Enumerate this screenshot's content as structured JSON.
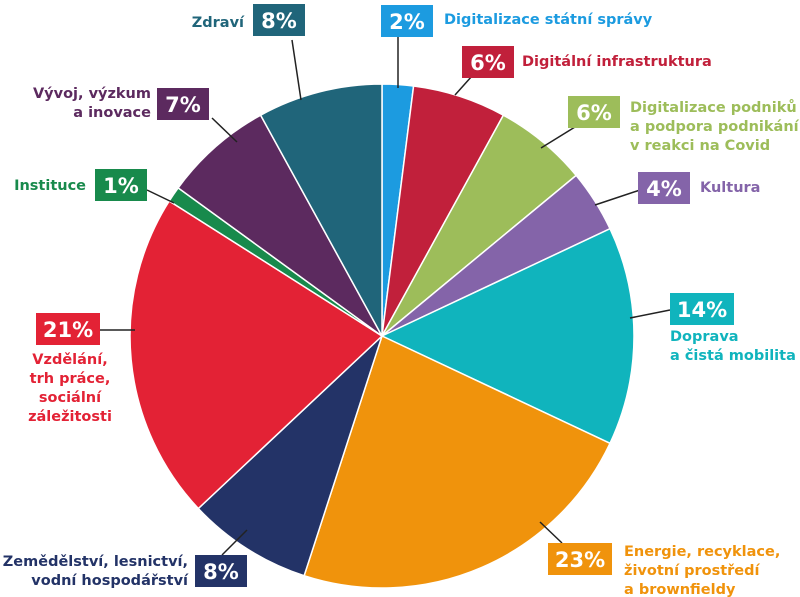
{
  "chart_data": {
    "type": "pie",
    "title": "",
    "unit": "%",
    "slices": [
      {
        "name": "Digitalizace státní správy",
        "name_lines": [
          "Digitalizace státní správy"
        ],
        "value": 2,
        "value_label": "2%",
        "color": "#1c9be0"
      },
      {
        "name": "Digitální infrastruktura",
        "name_lines": [
          "Digitální infrastruktura"
        ],
        "value": 6,
        "value_label": "6%",
        "color": "#c1203b"
      },
      {
        "name": "Digitalizace podniků a podpora podnikání v reakci na Covid",
        "name_lines": [
          "Digitalizace podniků",
          "a podpora podnikání",
          "v reakci na Covid"
        ],
        "value": 6,
        "value_label": "6%",
        "color": "#9dbd5a"
      },
      {
        "name": "Kultura",
        "name_lines": [
          "Kultura"
        ],
        "value": 4,
        "value_label": "4%",
        "color": "#8464a9"
      },
      {
        "name": "Doprava a čistá mobilita",
        "name_lines": [
          "Doprava",
          "a čistá mobilita"
        ],
        "value": 14,
        "value_label": "14%",
        "color": "#10b4bd"
      },
      {
        "name": "Energie, recyklace, životní prostředí a brownfieldy",
        "name_lines": [
          "Energie, recyklace,",
          "životní prostředí",
          "a brownfieldy"
        ],
        "value": 23,
        "value_label": "23%",
        "color": "#f0930c"
      },
      {
        "name": "Zemědělství, lesnictví, vodní hospodářství",
        "name_lines": [
          "Zemědělství, lesnictví,",
          "vodní hospodářství"
        ],
        "value": 8,
        "value_label": "8%",
        "color": "#233367"
      },
      {
        "name": "Vzdělání, trh práce, sociální záležitosti",
        "name_lines": [
          "Vzdělání,",
          "trh práce,",
          "sociální",
          "záležitosti"
        ],
        "value": 21,
        "value_label": "21%",
        "color": "#e32235"
      },
      {
        "name": "Instituce",
        "name_lines": [
          "Instituce"
        ],
        "value": 1,
        "value_label": "1%",
        "color": "#188a4c"
      },
      {
        "name": "Vývoj, výzkum a inovace",
        "name_lines": [
          "Vývoj, výzkum",
          "a inovace"
        ],
        "value": 7,
        "value_label": "7%",
        "color": "#5c2a5f"
      },
      {
        "name": "Zdraví",
        "name_lines": [
          "Zdraví"
        ],
        "value": 8,
        "value_label": "8%",
        "color": "#20657a"
      }
    ]
  }
}
